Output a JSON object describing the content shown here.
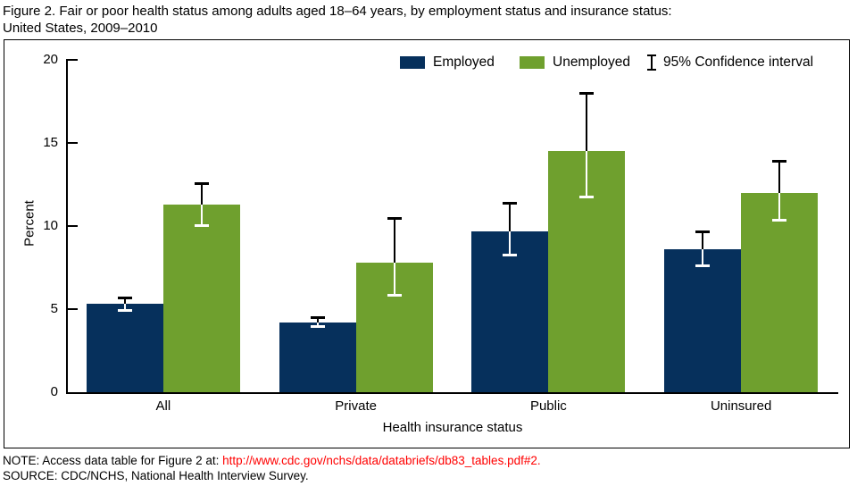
{
  "title": {
    "line1": "Figure 2. Fair or poor health status among adults aged 18–64 years, by employment status and insurance status:",
    "line2": "United States, 2009–2010"
  },
  "legend": {
    "series1_label": "Employed",
    "series2_label": "Unemployed",
    "ci_label": "95% Confidence interval"
  },
  "chart_data": {
    "type": "bar",
    "title": "Fair or poor health status among adults aged 18–64 years, by employment status and insurance status: United States, 2009–2010",
    "categories": [
      "All",
      "Private",
      "Public",
      "Uninsured"
    ],
    "series": [
      {
        "name": "Employed",
        "color": "#06305C",
        "values": [
          5.3,
          4.2,
          9.7,
          8.6
        ],
        "ci_low": [
          4.9,
          3.9,
          8.2,
          7.6
        ],
        "ci_high": [
          5.7,
          4.5,
          11.4,
          9.7
        ]
      },
      {
        "name": "Unemployed",
        "color": "#6FA02E",
        "values": [
          11.3,
          7.8,
          14.5,
          12.0
        ],
        "ci_low": [
          10.0,
          5.8,
          11.7,
          10.3
        ],
        "ci_high": [
          12.6,
          10.5,
          18.0,
          13.9
        ]
      }
    ],
    "xlabel": "Health insurance status",
    "ylabel": "Percent",
    "ylim": [
      0,
      20
    ],
    "yticks": [
      0,
      5,
      10,
      15,
      20
    ],
    "grid": false,
    "legend_position": "top-right",
    "error_bars": "95% Confidence interval"
  },
  "footer": {
    "note_prefix": "NOTE: Access data table for Figure 2 at: ",
    "note_link": "http://www.cdc.gov/nchs/data/databriefs/db83_tables.pdf#2.",
    "source": "SOURCE: CDC/NCHS, National Health Interview Survey.",
    "link_color": "#FF0000"
  }
}
